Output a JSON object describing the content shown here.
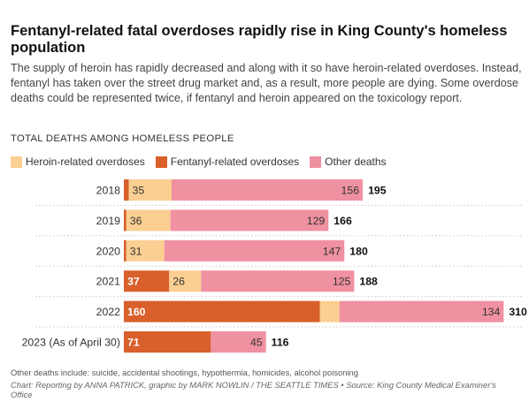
{
  "header": {
    "title": "Fentanyl-related fatal overdoses rapidly rise in King County's homeless population",
    "subtitle": "The supply of heroin has rapidly decreased and along with it so have heroin-related overdoses. Instead, fentanyl has taken over the street drug market and, as a result, more people are dying. Some overdose deaths could be represented twice, if fentanyl and heroin appeared on the toxicology report.",
    "section_label": "TOTAL DEATHS AMONG HOMELESS PEOPLE"
  },
  "legend": [
    {
      "label": "Heroin-related overdoses",
      "color": "#fbcf92"
    },
    {
      "label": "Fentanyl-related overdoses",
      "color": "#d95f2b"
    },
    {
      "label": "Other deaths",
      "color": "#ef91a1"
    }
  ],
  "chart_data": {
    "type": "bar",
    "orientation": "horizontal",
    "stacked": true,
    "categories": [
      "2018",
      "2019",
      "2020",
      "2021",
      "2022",
      "2023 (As of April 30)"
    ],
    "series": [
      {
        "name": "Fentanyl-related overdoses",
        "values": [
          4,
          2,
          2,
          37,
          160,
          71
        ],
        "color": "#d95f2b",
        "labels": [
          "",
          "",
          "",
          "37",
          "160",
          "71"
        ]
      },
      {
        "name": "Heroin-related overdoses",
        "values": [
          35,
          36,
          31,
          26,
          16,
          0
        ],
        "color": "#fbcf92",
        "labels": [
          "35",
          "36",
          "31",
          "26",
          "",
          ""
        ]
      },
      {
        "name": "Other deaths",
        "values": [
          156,
          129,
          147,
          125,
          134,
          45
        ],
        "color": "#ef91a1",
        "labels": [
          "156",
          "129",
          "147",
          "125",
          "134",
          "45"
        ]
      }
    ],
    "totals": [
      "195",
      "166",
      "180",
      "188",
      "310",
      "116"
    ],
    "xlim": [
      0,
      310
    ],
    "grid": "horizontal dotted separators"
  },
  "footer": {
    "note": "Other deaths include: suicide, accidental shootings, hypothermia, homicides, alcohol poisoning",
    "source": "Chart: Reporting by ANNA PATRICK, graphic by MARK NOWLIN / THE SEATTLE TIMES • Source: King County Medical Examiner's Office"
  }
}
